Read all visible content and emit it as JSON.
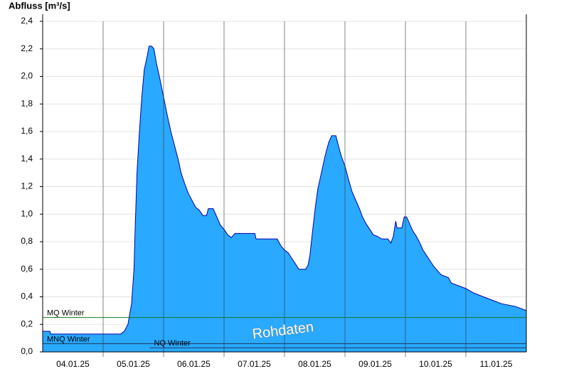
{
  "chart_data": {
    "type": "area",
    "y_label": "Abfluss [m³/s]",
    "watermark": "Rohdaten",
    "color": "#29a9ff",
    "line_color": "#0000aa",
    "grid": true,
    "xlim": [
      0,
      8
    ],
    "ylim": [
      0,
      2.4
    ],
    "xgrid": [
      1,
      2,
      3,
      4,
      5,
      6,
      7
    ],
    "xticks": [
      {
        "value": 0.5,
        "label": "04.01.25"
      },
      {
        "value": 1.5,
        "label": "05.01.25"
      },
      {
        "value": 2.5,
        "label": "06.01.25"
      },
      {
        "value": 3.5,
        "label": "07.01.25"
      },
      {
        "value": 4.5,
        "label": "08.01.25"
      },
      {
        "value": 5.5,
        "label": "09.01.25"
      },
      {
        "value": 6.5,
        "label": "10.01.25"
      },
      {
        "value": 7.5,
        "label": "11.01.25"
      }
    ],
    "yticks": [
      {
        "value": 0,
        "label": "0,0"
      },
      {
        "value": 0.2,
        "label": "0,2"
      },
      {
        "value": 0.4,
        "label": "0,4"
      },
      {
        "value": 0.6,
        "label": "0,6"
      },
      {
        "value": 0.8,
        "label": "0,8"
      },
      {
        "value": 1.0,
        "label": "1,0"
      },
      {
        "value": 1.2,
        "label": "1,2"
      },
      {
        "value": 1.4,
        "label": "1,4"
      },
      {
        "value": 1.6,
        "label": "1,6"
      },
      {
        "value": 1.8,
        "label": "1,8"
      },
      {
        "value": 2.0,
        "label": "2,0"
      },
      {
        "value": 2.2,
        "label": "2,2"
      },
      {
        "value": 2.4,
        "label": "2,4"
      }
    ],
    "reference_lines": [
      {
        "label": "MQ Winter",
        "value": 0.25,
        "color": "#1a7a1a",
        "x_start": 0
      },
      {
        "label": "MNQ Winter",
        "value": 0.06,
        "color": "#1a3a5a",
        "x_start": 0
      },
      {
        "label": "NQ Winter",
        "value": 0.03,
        "color": "#1a3a5a",
        "x_start": 1.77
      }
    ],
    "x": [
      0,
      0.12,
      0.13,
      1.29,
      1.35,
      1.41,
      1.47,
      1.51,
      1.53,
      1.56,
      1.6,
      1.64,
      1.68,
      1.73,
      1.76,
      1.8,
      1.84,
      1.88,
      1.94,
      2.0,
      2.06,
      2.12,
      2.18,
      2.24,
      2.29,
      2.35,
      2.41,
      2.47,
      2.53,
      2.59,
      2.65,
      2.71,
      2.74,
      2.82,
      2.88,
      2.94,
      3.0,
      3.06,
      3.12,
      3.18,
      3.51,
      3.53,
      3.88,
      3.94,
      4.0,
      4.06,
      4.12,
      4.18,
      4.24,
      4.35,
      4.39,
      4.42,
      4.47,
      4.51,
      4.55,
      4.61,
      4.67,
      4.73,
      4.78,
      4.85,
      4.89,
      4.94,
      5.0,
      5.06,
      5.12,
      5.18,
      5.24,
      5.29,
      5.35,
      5.41,
      5.47,
      5.53,
      5.61,
      5.71,
      5.76,
      5.8,
      5.84,
      5.86,
      5.94,
      5.98,
      6.02,
      6.07,
      6.12,
      6.18,
      6.24,
      6.29,
      6.35,
      6.41,
      6.47,
      6.53,
      6.59,
      6.71,
      6.76,
      6.88,
      7.0,
      7.12,
      7.29,
      7.41,
      7.59,
      7.82,
      8.0
    ],
    "values": [
      0.15,
      0.15,
      0.13,
      0.13,
      0.15,
      0.2,
      0.35,
      0.6,
      0.9,
      1.3,
      1.6,
      1.85,
      2.05,
      2.15,
      2.22,
      2.22,
      2.2,
      2.1,
      1.98,
      1.85,
      1.72,
      1.6,
      1.5,
      1.4,
      1.3,
      1.22,
      1.15,
      1.1,
      1.05,
      1.03,
      0.99,
      0.99,
      1.04,
      1.04,
      0.98,
      0.92,
      0.89,
      0.85,
      0.83,
      0.86,
      0.86,
      0.82,
      0.82,
      0.77,
      0.74,
      0.72,
      0.68,
      0.64,
      0.6,
      0.6,
      0.63,
      0.7,
      0.9,
      1.05,
      1.18,
      1.3,
      1.42,
      1.52,
      1.57,
      1.57,
      1.5,
      1.42,
      1.35,
      1.25,
      1.16,
      1.1,
      1.04,
      0.98,
      0.93,
      0.89,
      0.85,
      0.84,
      0.82,
      0.82,
      0.79,
      0.84,
      0.95,
      0.9,
      0.9,
      0.98,
      0.98,
      0.93,
      0.88,
      0.84,
      0.79,
      0.74,
      0.7,
      0.66,
      0.62,
      0.59,
      0.56,
      0.54,
      0.5,
      0.48,
      0.46,
      0.43,
      0.4,
      0.38,
      0.35,
      0.33,
      0.3
    ]
  }
}
